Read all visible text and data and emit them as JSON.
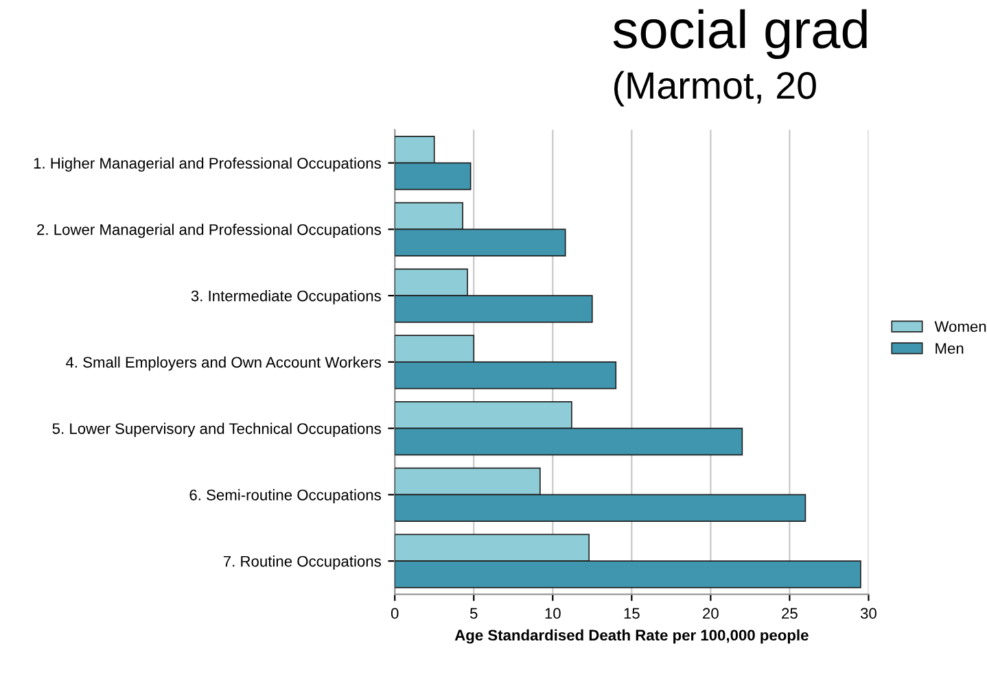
{
  "chart_data": {
    "type": "bar",
    "orientation": "horizontal",
    "title": "social grad",
    "subtitle": "(Marmot, 20",
    "xlabel": "Age Standardised Death Rate per 100,000 people",
    "categories": [
      "1. Higher Managerial and Professional Occupations",
      "2. Lower Managerial and Professional Occupations",
      "3. Intermediate Occupations",
      "4. Small Employers and Own Account Workers",
      "5. Lower Supervisory and Technical Occupations",
      "6. Semi-routine Occupations",
      "7. Routine Occupations"
    ],
    "series": [
      {
        "name": "Women",
        "color": "#8ecdd8",
        "values": [
          2.5,
          4.3,
          4.6,
          5.0,
          11.2,
          9.2,
          12.3
        ]
      },
      {
        "name": "Men",
        "color": "#3f96ae",
        "values": [
          4.8,
          10.8,
          12.5,
          14.0,
          22.0,
          26.0,
          29.5
        ]
      }
    ],
    "xlim": [
      0,
      30
    ],
    "xticks": [
      0,
      5,
      10,
      15,
      20,
      25,
      30
    ],
    "grid": "x",
    "legend": "right"
  }
}
